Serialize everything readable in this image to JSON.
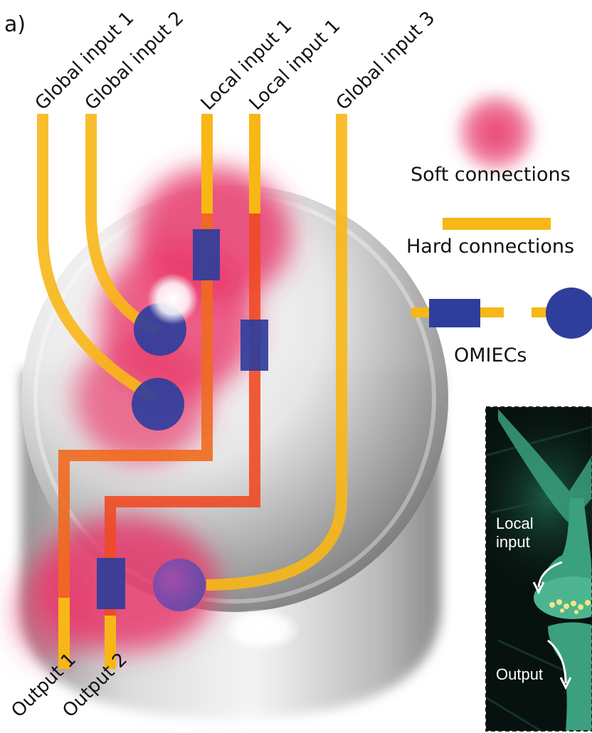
{
  "panel_label": "a)",
  "inputs": {
    "global_1": "Global input 1",
    "global_2": "Global input 2",
    "local_1a": "Local input 1",
    "local_1b": "Local input 1",
    "global_3": "Global input 3"
  },
  "outputs": {
    "output_1": "Output 1",
    "output_2": "Output 2"
  },
  "legend": {
    "soft": "Soft connections",
    "hard": "Hard connections",
    "omiecs": "OMIECs"
  },
  "inset": {
    "local_input_line1": "Local",
    "local_input_line2": "input",
    "output": "Output"
  },
  "colors": {
    "hard_connection": "#f8b716",
    "hard_connection_red": "#ef4a22",
    "soft_connection": "#e83a6c",
    "omiec": "#2f3e9c",
    "inset_bg": "#07120f",
    "neuron": "#3aa07e"
  }
}
